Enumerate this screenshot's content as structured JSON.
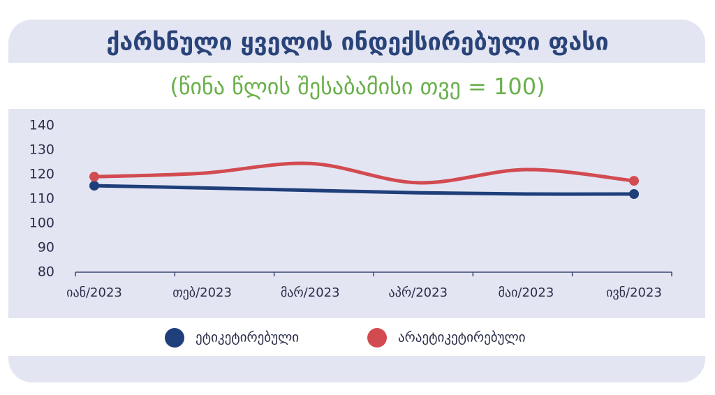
{
  "chart_data": {
    "type": "line",
    "title": "ქარხნული ყველის ინდექსირებული ფასი",
    "subtitle": "(წინა წლის შესაბამისი თვე = 100)",
    "categories": [
      "იან/2023",
      "თებ/2023",
      "მარ/2023",
      "აპრ/2023",
      "მაი/2023",
      "ივნ/2023"
    ],
    "series": [
      {
        "name": "ეტიკეტირებული",
        "color": "#1f3f7a",
        "values": [
          115.4,
          114.5,
          113.5,
          112.5,
          112,
          112
        ]
      },
      {
        "name": "არაეტიკეტირებული",
        "color": "#d24b50",
        "values": [
          119.1,
          120.5,
          124.5,
          116.6,
          122,
          117.4
        ]
      }
    ],
    "ylim": [
      80,
      140
    ],
    "yticks": [
      80,
      90,
      100,
      110,
      120,
      130,
      140
    ],
    "legend": "bottom"
  }
}
